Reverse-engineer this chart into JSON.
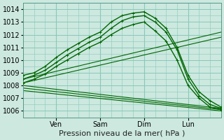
{
  "title": "",
  "xlabel": "Pression niveau de la mer( hPa )",
  "ylabel": "",
  "bg_color": "#cce8df",
  "grid_color": "#88c8b8",
  "line_color": "#006600",
  "ylim": [
    1005.5,
    1014.5
  ],
  "yticks": [
    1006,
    1007,
    1008,
    1009,
    1010,
    1011,
    1012,
    1013,
    1014
  ],
  "xlim": [
    0,
    108
  ],
  "xtick_positions": [
    18,
    42,
    66,
    90
  ],
  "xtick_labels": [
    "Ven",
    "Sam",
    "Dim",
    "Lun"
  ],
  "lines": [
    {
      "x": [
        0,
        6,
        12,
        18,
        24,
        30,
        36,
        42,
        48,
        54,
        60,
        66,
        72,
        78,
        84,
        90,
        96,
        102,
        108
      ],
      "y": [
        1008.8,
        1009.0,
        1009.5,
        1010.2,
        1010.8,
        1011.3,
        1011.8,
        1012.2,
        1013.0,
        1013.5,
        1013.7,
        1013.8,
        1013.3,
        1012.5,
        1011.0,
        1008.8,
        1007.5,
        1006.8,
        1006.3
      ],
      "marker": "+",
      "lw": 1.0
    },
    {
      "x": [
        0,
        6,
        12,
        18,
        24,
        30,
        36,
        42,
        48,
        54,
        60,
        66,
        72,
        78,
        84,
        90,
        96,
        102,
        108
      ],
      "y": [
        1008.5,
        1008.8,
        1009.2,
        1009.8,
        1010.4,
        1010.9,
        1011.4,
        1011.8,
        1012.5,
        1013.1,
        1013.4,
        1013.5,
        1013.0,
        1012.2,
        1010.8,
        1008.5,
        1007.2,
        1006.5,
        1006.2
      ],
      "marker": "+",
      "lw": 1.0
    },
    {
      "x": [
        0,
        6,
        12,
        18,
        24,
        30,
        36,
        42,
        48,
        54,
        60,
        66,
        72,
        78,
        84,
        90,
        96,
        102,
        108
      ],
      "y": [
        1008.2,
        1008.5,
        1008.9,
        1009.5,
        1010.0,
        1010.5,
        1011.0,
        1011.4,
        1012.0,
        1012.5,
        1012.8,
        1013.0,
        1012.3,
        1011.5,
        1010.0,
        1008.0,
        1007.0,
        1006.3,
        1006.1
      ],
      "marker": "+",
      "lw": 1.0
    },
    {
      "x": [
        0,
        108
      ],
      "y": [
        1008.5,
        1012.2
      ],
      "marker": null,
      "lw": 0.8
    },
    {
      "x": [
        0,
        108
      ],
      "y": [
        1008.2,
        1011.8
      ],
      "marker": null,
      "lw": 0.8
    },
    {
      "x": [
        0,
        108
      ],
      "y": [
        1008.0,
        1006.2
      ],
      "marker": null,
      "lw": 0.8
    },
    {
      "x": [
        0,
        108
      ],
      "y": [
        1007.8,
        1006.1
      ],
      "marker": null,
      "lw": 0.8
    },
    {
      "x": [
        0,
        108
      ],
      "y": [
        1007.6,
        1006.0
      ],
      "marker": null,
      "lw": 0.8
    }
  ],
  "font_size_label": 8,
  "font_size_tick": 7
}
